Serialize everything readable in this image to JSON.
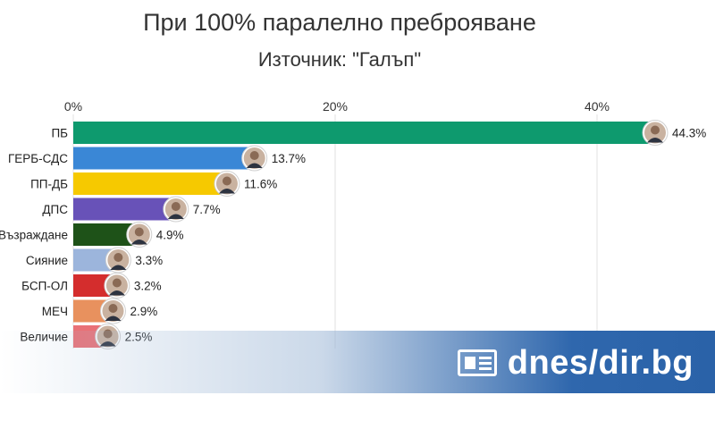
{
  "chart_data": {
    "type": "bar",
    "orientation": "horizontal",
    "title": "При 100% паралелно преброяване",
    "subtitle": "Източник: \"Галъп\"",
    "x_ticks": [
      "0%",
      "20%",
      "40%"
    ],
    "x_tick_values": [
      0,
      20,
      40
    ],
    "xlim": [
      0,
      50
    ],
    "categories": [
      "ПБ",
      "ГЕРБ-СДС",
      "ПП-ДБ",
      "ДПС",
      "Възраждане",
      "Сияние",
      "БСП-ОЛ",
      "МЕЧ",
      "Величие"
    ],
    "values": [
      44.3,
      13.7,
      11.6,
      7.7,
      4.9,
      3.3,
      3.2,
      2.9,
      2.5
    ],
    "value_labels": [
      "44.3%",
      "13.7%",
      "11.6%",
      "7.7%",
      "4.9%",
      "3.3%",
      "3.2%",
      "2.9%",
      "2.5%"
    ],
    "colors": [
      "#0e9a6e",
      "#3a87d6",
      "#f6c900",
      "#6852b8",
      "#1e5218",
      "#9cb5dc",
      "#d42d2d",
      "#e8915e",
      "#e97176"
    ],
    "grid": true,
    "legend": "none"
  },
  "watermark": {
    "text": "dnes/dir.bg",
    "icon": "newspaper-icon",
    "color": "#2a62a8"
  }
}
